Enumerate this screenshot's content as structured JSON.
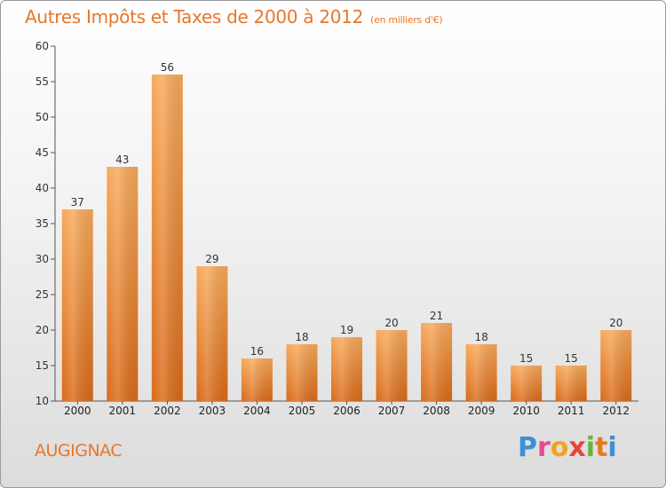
{
  "title": "Autres Impôts et Taxes de 2000 à 2012",
  "title_unit": "(en milliers d'€)",
  "place": "AUGIGNAC",
  "logo": {
    "letters": [
      "P",
      "r",
      "o",
      "x",
      "i",
      "t",
      "i"
    ],
    "colors": [
      "#3d8fd6",
      "#e84a8f",
      "#f2a21e",
      "#e8443a",
      "#6cb33e",
      "#e87a1e",
      "#3d8fd6"
    ]
  },
  "colors": {
    "bar_top": "#f7a95a",
    "bar_bottom": "#d96a18",
    "accent": "#e8762a"
  },
  "chart_data": {
    "type": "bar",
    "title": "Autres Impôts et Taxes de 2000 à 2012",
    "subtitle": "(en milliers d'€)",
    "categories": [
      "2000",
      "2001",
      "2002",
      "2003",
      "2004",
      "2005",
      "2006",
      "2007",
      "2008",
      "2009",
      "2010",
      "2011",
      "2012"
    ],
    "values": [
      37,
      43,
      56,
      29,
      16,
      18,
      19,
      20,
      21,
      18,
      15,
      15,
      20
    ],
    "ylim": [
      10,
      60
    ],
    "yticks": [
      10,
      15,
      20,
      25,
      30,
      35,
      40,
      45,
      50,
      55,
      60
    ],
    "grid": false,
    "data_labels": true
  }
}
